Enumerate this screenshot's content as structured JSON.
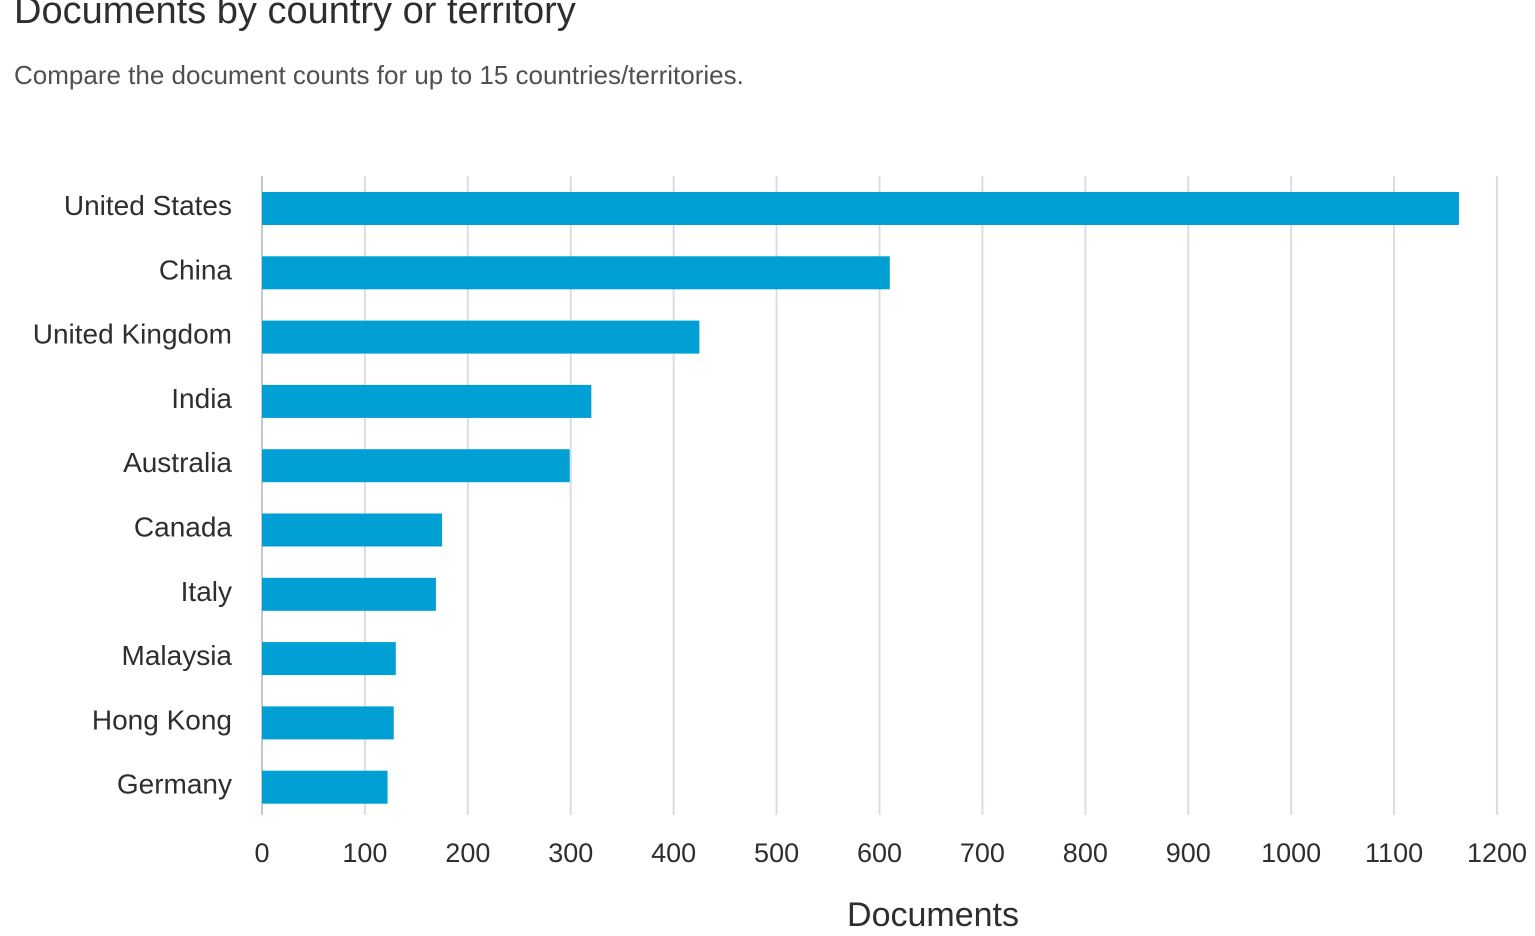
{
  "chart_data": {
    "type": "bar",
    "orientation": "horizontal",
    "title": "Documents by country or territory",
    "subtitle": "Compare the document counts for up to 15 countries/territories.",
    "categories": [
      "United States",
      "China",
      "United Kingdom",
      "India",
      "Australia",
      "Canada",
      "Italy",
      "Malaysia",
      "Hong Kong",
      "Germany"
    ],
    "values": [
      1163,
      610,
      425,
      320,
      299,
      175,
      169,
      130,
      128,
      122
    ],
    "xlabel": "Documents",
    "ylabel": "",
    "xlim": [
      0,
      1200
    ],
    "xticks": [
      "0",
      "100",
      "200",
      "300",
      "400",
      "500",
      "600",
      "700",
      "800",
      "900",
      "1000",
      "1100",
      "1200"
    ],
    "grid": true,
    "bar_color": "#009fd4"
  }
}
